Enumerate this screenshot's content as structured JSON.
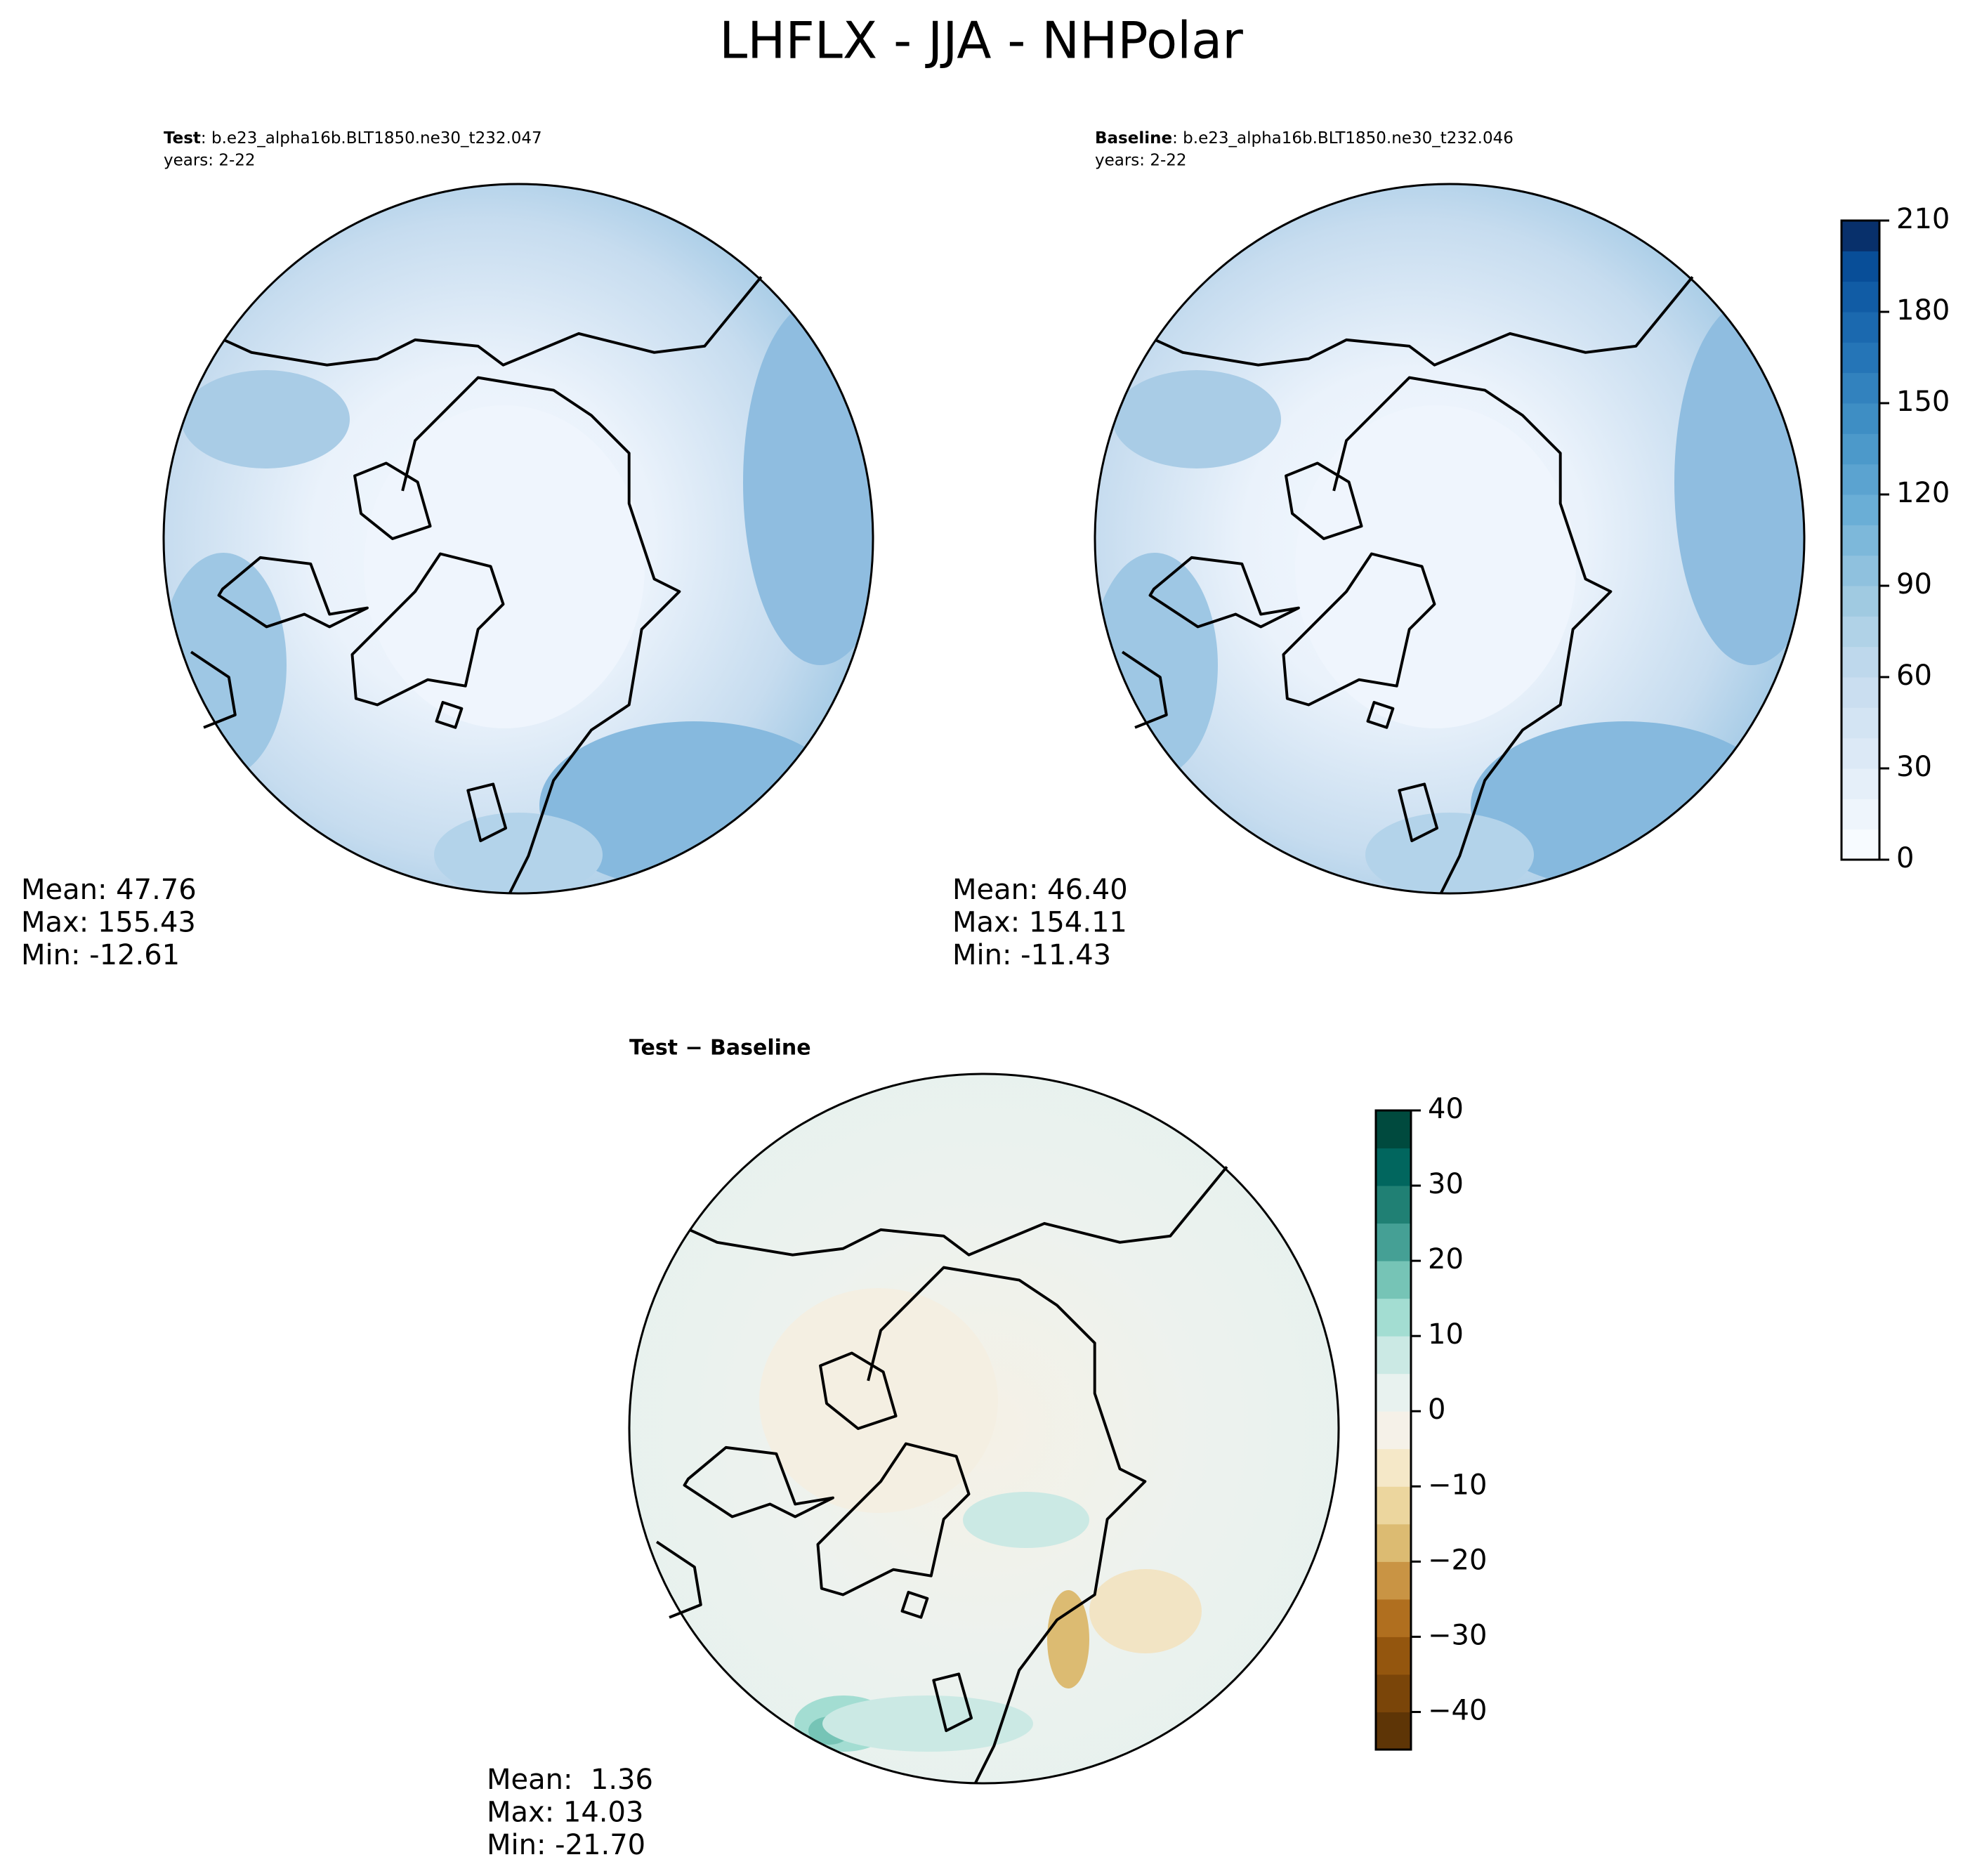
{
  "title": "LHFLX - JJA - NHPolar",
  "panels": [
    {
      "label": "Test",
      "case": ": b.e23_alpha16b.BLT1850.ne30_t232.047",
      "years": "years: 2-22",
      "stats": [
        "Mean: 47.76",
        "Max: 155.43",
        "Min: -12.61"
      ]
    },
    {
      "label": "Baseline",
      "case": ": b.e23_alpha16b.BLT1850.ne30_t232.046",
      "years": "years: 2-22",
      "stats": [
        "Mean: 46.40",
        "Max: 154.11",
        "Min: -11.43"
      ]
    }
  ],
  "diff": {
    "label": "Test − Baseline",
    "stats": [
      "Mean:  1.36",
      "Max: 14.03",
      "Min: -21.70"
    ]
  },
  "colorbars": [
    {
      "lim": [
        0,
        210
      ],
      "ticks": [
        0,
        30,
        60,
        90,
        120,
        150,
        180,
        210
      ],
      "colors": [
        "#f7fbff",
        "#eef5fc",
        "#e5eff9",
        "#dce9f6",
        "#d3e4f3",
        "#cadef0",
        "#bed8ec",
        "#b0d2e7",
        "#a0cae1",
        "#8fc1de",
        "#7db8da",
        "#6aaed6",
        "#5ba3d0",
        "#4c99ca",
        "#3e8ec4",
        "#3282be",
        "#2575b7",
        "#1b69af",
        "#115ca5",
        "#084e98",
        "#08306b"
      ]
    },
    {
      "lim": [
        -45,
        40
      ],
      "ticks": [
        {
          "value": -40,
          "label": "−40"
        },
        {
          "value": -30,
          "label": "−30"
        },
        {
          "value": -20,
          "label": "−20"
        },
        {
          "value": -10,
          "label": "−10"
        },
        0,
        10,
        20,
        30,
        40
      ],
      "colors": [
        "#5e3506",
        "#7a4509",
        "#94560e",
        "#b06f1f",
        "#c99444",
        "#dcbb72",
        "#ecd69e",
        "#f5e8c8",
        "#f5f1e8",
        "#e8f2ef",
        "#cbe9e4",
        "#a3ddd2",
        "#76c4b6",
        "#45a095",
        "#208074",
        "#01665e",
        "#004a3e"
      ]
    }
  ]
}
